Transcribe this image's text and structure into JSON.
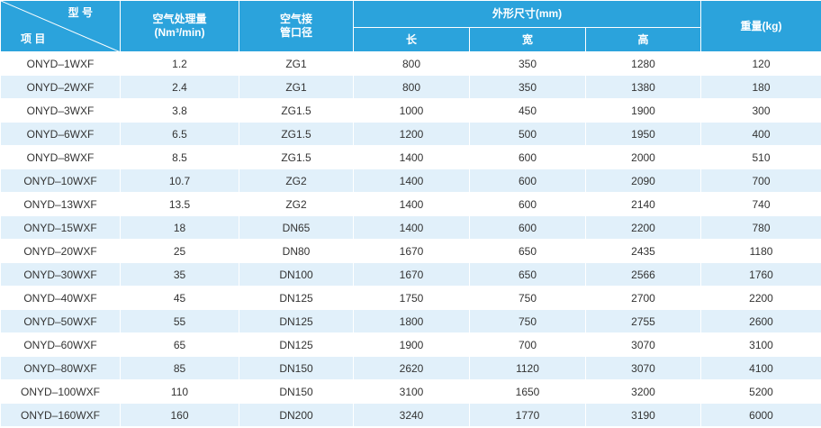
{
  "header": {
    "model_label": "型 号",
    "item_label": "项 目",
    "air_flow": [
      "空气处理量",
      "(Nm³/min)"
    ],
    "pipe": [
      "空气接",
      "管口径"
    ],
    "dimensions": "外形尺寸(mm)",
    "length": "长",
    "width": "宽",
    "height": "高",
    "weight": "重量(kg)"
  },
  "table": {
    "rows": [
      [
        "ONYD–1WXF",
        "1.2",
        "ZG1",
        "800",
        "350",
        "1280",
        "120"
      ],
      [
        "ONYD–2WXF",
        "2.4",
        "ZG1",
        "800",
        "350",
        "1380",
        "180"
      ],
      [
        "ONYD–3WXF",
        "3.8",
        "ZG1.5",
        "1000",
        "450",
        "1900",
        "300"
      ],
      [
        "ONYD–6WXF",
        "6.5",
        "ZG1.5",
        "1200",
        "500",
        "1950",
        "400"
      ],
      [
        "ONYD–8WXF",
        "8.5",
        "ZG1.5",
        "1400",
        "600",
        "2000",
        "510"
      ],
      [
        "ONYD–10WXF",
        "10.7",
        "ZG2",
        "1400",
        "600",
        "2090",
        "700"
      ],
      [
        "ONYD–13WXF",
        "13.5",
        "ZG2",
        "1400",
        "600",
        "2140",
        "740"
      ],
      [
        "ONYD–15WXF",
        "18",
        "DN65",
        "1400",
        "600",
        "2200",
        "780"
      ],
      [
        "ONYD–20WXF",
        "25",
        "DN80",
        "1670",
        "650",
        "2435",
        "1180"
      ],
      [
        "ONYD–30WXF",
        "35",
        "DN100",
        "1670",
        "650",
        "2566",
        "1760"
      ],
      [
        "ONYD–40WXF",
        "45",
        "DN125",
        "1750",
        "750",
        "2700",
        "2200"
      ],
      [
        "ONYD–50WXF",
        "55",
        "DN125",
        "1800",
        "750",
        "2755",
        "2600"
      ],
      [
        "ONYD–60WXF",
        "65",
        "DN125",
        "1900",
        "700",
        "3070",
        "3100"
      ],
      [
        "ONYD–80WXF",
        "85",
        "DN150",
        "2620",
        "1120",
        "3070",
        "4100"
      ],
      [
        "ONYD–100WXF",
        "110",
        "DN150",
        "3100",
        "1650",
        "3200",
        "5200"
      ],
      [
        "ONYD–160WXF",
        "160",
        "DN200",
        "3240",
        "1770",
        "3190",
        "6000"
      ]
    ]
  }
}
